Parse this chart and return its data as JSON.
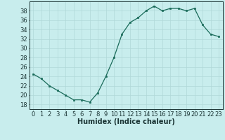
{
  "x": [
    0,
    1,
    2,
    3,
    4,
    5,
    6,
    7,
    8,
    9,
    10,
    11,
    12,
    13,
    14,
    15,
    16,
    17,
    18,
    19,
    20,
    21,
    22,
    23
  ],
  "y": [
    24.5,
    23.5,
    22,
    21,
    20,
    19,
    19,
    18.5,
    20.5,
    24,
    28,
    33,
    35.5,
    36.5,
    38,
    39,
    38,
    38.5,
    38.5,
    38,
    38.5,
    35,
    33,
    32.5
  ],
  "line_color": "#1a6b5a",
  "marker_color": "#1a6b5a",
  "bg_color": "#c8eded",
  "grid_color": "#b0d8d8",
  "xlabel": "Humidex (Indice chaleur)",
  "xlabel_fontsize": 7,
  "tick_fontsize": 6,
  "ylim": [
    17,
    40
  ],
  "yticks": [
    18,
    20,
    22,
    24,
    26,
    28,
    30,
    32,
    34,
    36,
    38
  ],
  "xticks": [
    0,
    1,
    2,
    3,
    4,
    5,
    6,
    7,
    8,
    9,
    10,
    11,
    12,
    13,
    14,
    15,
    16,
    17,
    18,
    19,
    20,
    21,
    22,
    23
  ]
}
